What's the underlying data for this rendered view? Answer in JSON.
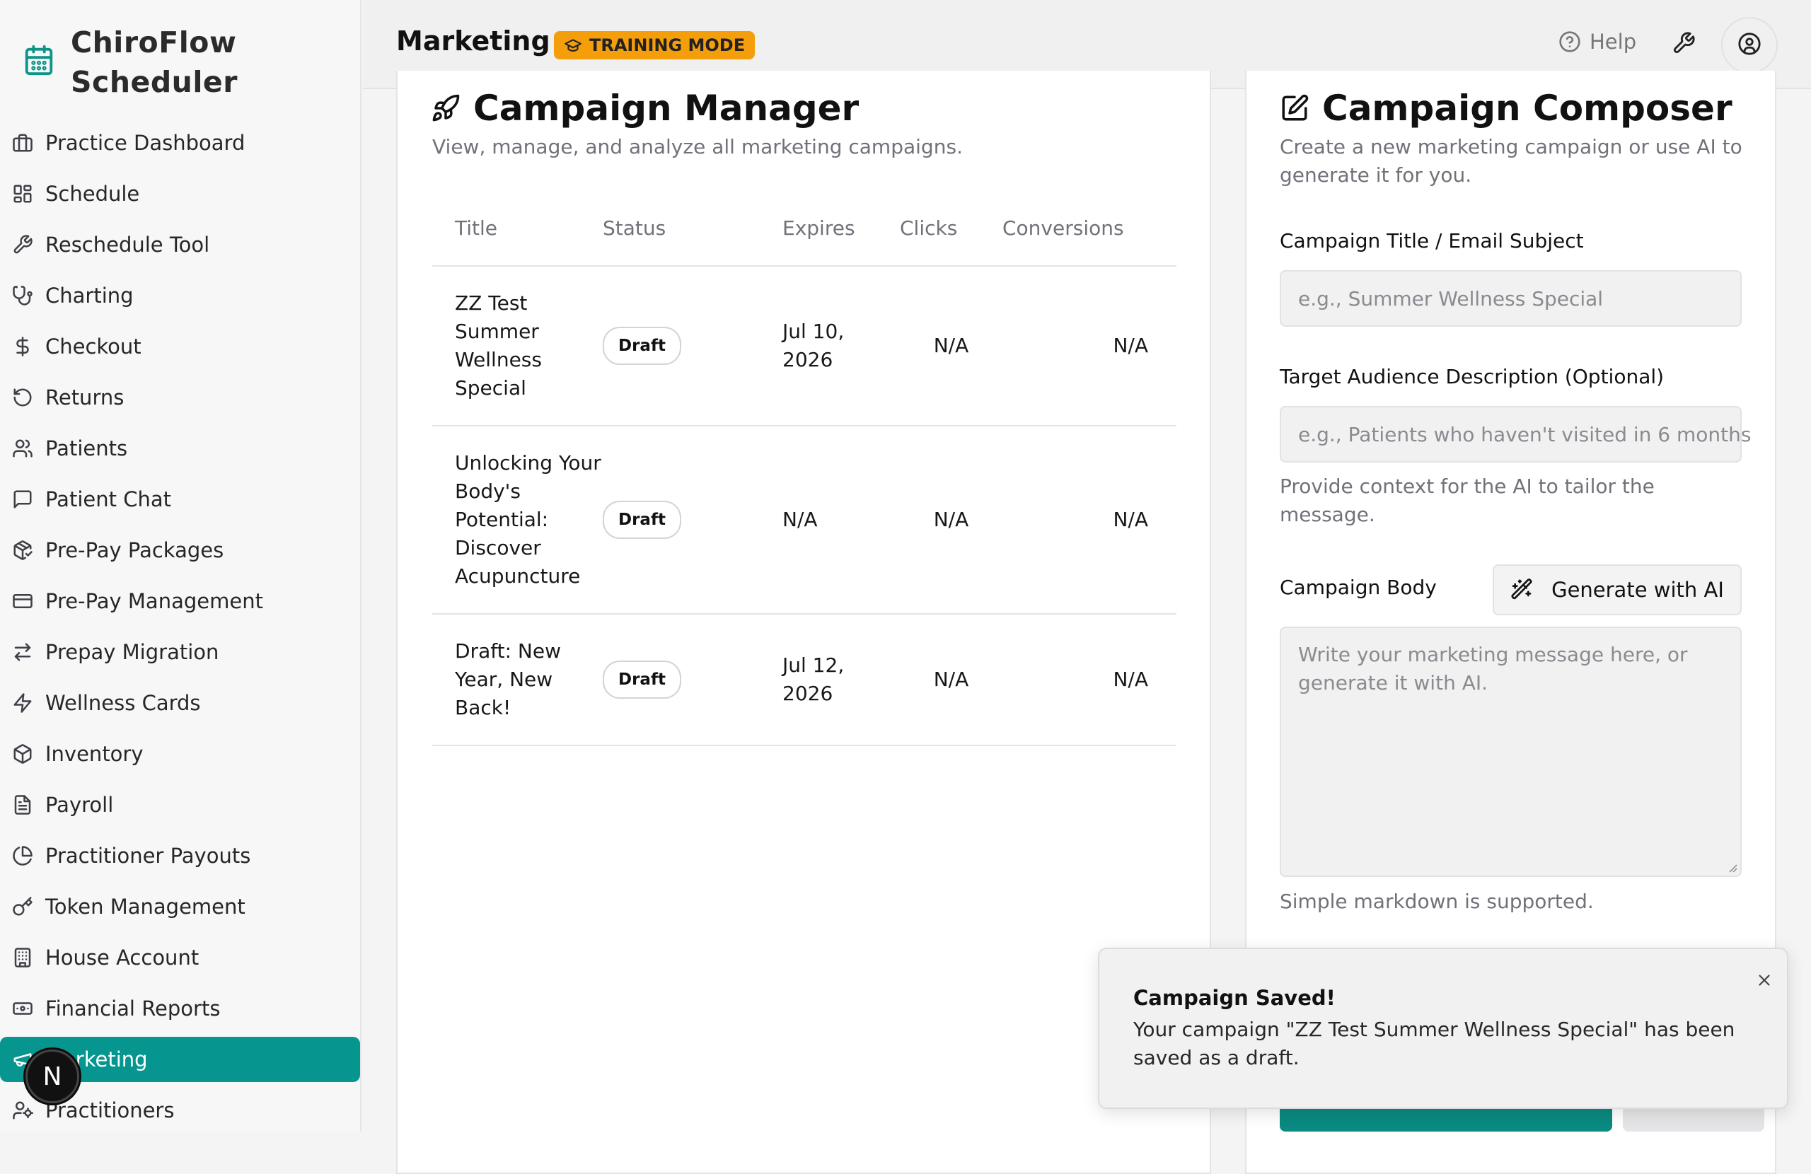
{
  "app": {
    "name_line1": "ChiroFlow",
    "name_line2": "Scheduler"
  },
  "sidebar": {
    "items": [
      {
        "label": "Practice Dashboard",
        "icon": "briefcase-icon"
      },
      {
        "label": "Schedule",
        "icon": "layout-grid-icon"
      },
      {
        "label": "Reschedule Tool",
        "icon": "wrench-icon"
      },
      {
        "label": "Charting",
        "icon": "stethoscope-icon"
      },
      {
        "label": "Checkout",
        "icon": "dollar-icon"
      },
      {
        "label": "Returns",
        "icon": "rotate-ccw-icon"
      },
      {
        "label": "Patients",
        "icon": "users-icon"
      },
      {
        "label": "Patient Chat",
        "icon": "message-square-icon"
      },
      {
        "label": "Pre-Pay Packages",
        "icon": "package-check-icon"
      },
      {
        "label": "Pre-Pay Management",
        "icon": "credit-card-icon"
      },
      {
        "label": "Prepay Migration",
        "icon": "arrows-left-right-icon"
      },
      {
        "label": "Wellness Cards",
        "icon": "zap-icon"
      },
      {
        "label": "Inventory",
        "icon": "box-icon"
      },
      {
        "label": "Payroll",
        "icon": "file-text-icon"
      },
      {
        "label": "Practitioner Payouts",
        "icon": "pie-chart-icon"
      },
      {
        "label": "Token Management",
        "icon": "key-icon"
      },
      {
        "label": "House Account",
        "icon": "building-icon"
      },
      {
        "label": "Financial Reports",
        "icon": "banknote-icon"
      },
      {
        "label": "Marketing",
        "icon": "megaphone-icon",
        "active": true
      },
      {
        "label": "Practitioners",
        "icon": "user-cog-icon"
      }
    ],
    "avatar_letter": "N"
  },
  "header": {
    "title": "Marketing",
    "training_badge": "TRAINING MODE",
    "help_label": "Help"
  },
  "manager": {
    "title": "Campaign Manager",
    "subtitle": "View, manage, and analyze all marketing campaigns.",
    "columns": [
      "Title",
      "Status",
      "Expires",
      "Clicks",
      "Conversions"
    ],
    "rows": [
      {
        "title": "ZZ Test Summer Wellness Special",
        "status": "Draft",
        "expires": "Jul 10, 2026",
        "clicks": "N/A",
        "conversions": "N/A"
      },
      {
        "title": "Unlocking Your Body's Potential: Discover Acupuncture",
        "status": "Draft",
        "expires": "N/A",
        "clicks": "N/A",
        "conversions": "N/A"
      },
      {
        "title": "Draft: New Year, New Back!",
        "status": "Draft",
        "expires": "Jul 12, 2026",
        "clicks": "N/A",
        "conversions": "N/A"
      }
    ]
  },
  "composer": {
    "title": "Campaign Composer",
    "subtitle": "Create a new marketing campaign or use AI to generate it for you.",
    "title_label": "Campaign Title / Email Subject",
    "title_placeholder": "e.g., Summer Wellness Special",
    "audience_label": "Target Audience Description (Optional)",
    "audience_placeholder": "e.g., Patients who haven't visited in 6 months",
    "audience_help": "Provide context for the AI to tailor the message.",
    "body_label": "Campaign Body",
    "generate_label": "Generate with AI",
    "body_placeholder": "Write your marketing message here, or generate it with AI.",
    "body_help": "Simple markdown is supported."
  },
  "toast": {
    "title": "Campaign Saved!",
    "body": "Your campaign \"ZZ Test Summer Wellness Special\" has been saved as a draft."
  },
  "colors": {
    "accent": "#06968f",
    "badge": "#f59e0b"
  }
}
